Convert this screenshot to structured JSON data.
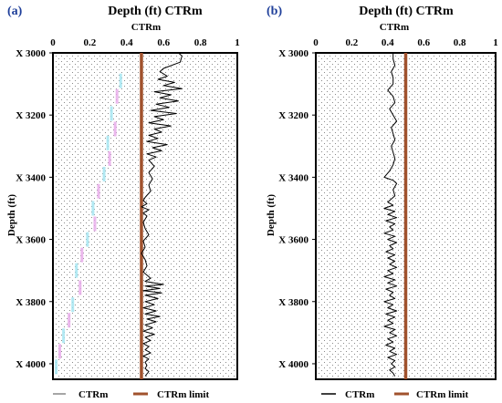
{
  "chart_data": [
    {
      "type": "line",
      "panel_label": "(a)",
      "title": "Depth (ft) CTRm",
      "xlabel": "CTRm",
      "ylabel": "Depth (ft)",
      "xlim": [
        0,
        1
      ],
      "ylim": [
        3000,
        4050
      ],
      "x_ticks": [
        "0",
        "0.2",
        "0.4",
        "0.6",
        "0.8",
        "1"
      ],
      "x_tick_values": [
        0,
        0.2,
        0.4,
        0.6,
        0.8,
        1
      ],
      "y_ticks": [
        "X 3000",
        "X 3200",
        "X 3400",
        "X 3600",
        "X 3800",
        "X 4000"
      ],
      "y_tick_values": [
        3000,
        3200,
        3400,
        3600,
        3800,
        4000
      ],
      "ctrm_limit": 0.48,
      "legend": [
        {
          "label": "CTRm",
          "color": "#888888"
        },
        {
          "label": "CTRm limit",
          "color": "#a0522d"
        }
      ],
      "series": [
        {
          "name": "CTRm",
          "color": "#000000",
          "points": [
            [
              0.68,
              3000
            ],
            [
              0.7,
              3010
            ],
            [
              0.69,
              3030
            ],
            [
              0.6,
              3050
            ],
            [
              0.58,
              3060
            ],
            [
              0.62,
              3075
            ],
            [
              0.57,
              3085
            ],
            [
              0.66,
              3095
            ],
            [
              0.6,
              3105
            ],
            [
              0.7,
              3115
            ],
            [
              0.55,
              3125
            ],
            [
              0.64,
              3135
            ],
            [
              0.58,
              3145
            ],
            [
              0.68,
              3155
            ],
            [
              0.56,
              3165
            ],
            [
              0.63,
              3175
            ],
            [
              0.53,
              3185
            ],
            [
              0.67,
              3195
            ],
            [
              0.55,
              3205
            ],
            [
              0.6,
              3215
            ],
            [
              0.52,
              3225
            ],
            [
              0.64,
              3235
            ],
            [
              0.55,
              3245
            ],
            [
              0.59,
              3255
            ],
            [
              0.52,
              3265
            ],
            [
              0.57,
              3275
            ],
            [
              0.51,
              3285
            ],
            [
              0.62,
              3295
            ],
            [
              0.54,
              3305
            ],
            [
              0.59,
              3315
            ],
            [
              0.51,
              3325
            ],
            [
              0.56,
              3335
            ],
            [
              0.52,
              3345
            ],
            [
              0.55,
              3365
            ],
            [
              0.52,
              3385
            ],
            [
              0.54,
              3405
            ],
            [
              0.52,
              3425
            ],
            [
              0.53,
              3445
            ],
            [
              0.5,
              3465
            ],
            [
              0.49,
              3475
            ],
            [
              0.51,
              3485
            ],
            [
              0.48,
              3495
            ],
            [
              0.52,
              3505
            ],
            [
              0.49,
              3515
            ],
            [
              0.51,
              3525
            ],
            [
              0.49,
              3545
            ],
            [
              0.5,
              3565
            ],
            [
              0.52,
              3585
            ],
            [
              0.49,
              3605
            ],
            [
              0.5,
              3625
            ],
            [
              0.48,
              3645
            ],
            [
              0.5,
              3665
            ],
            [
              0.51,
              3685
            ],
            [
              0.49,
              3705
            ],
            [
              0.53,
              3725
            ],
            [
              0.5,
              3735
            ],
            [
              0.6,
              3745
            ],
            [
              0.5,
              3750
            ],
            [
              0.58,
              3758
            ],
            [
              0.49,
              3765
            ],
            [
              0.59,
              3772
            ],
            [
              0.5,
              3780
            ],
            [
              0.57,
              3790
            ],
            [
              0.5,
              3800
            ],
            [
              0.55,
              3810
            ],
            [
              0.49,
              3820
            ],
            [
              0.56,
              3830
            ],
            [
              0.5,
              3840
            ],
            [
              0.58,
              3848
            ],
            [
              0.51,
              3856
            ],
            [
              0.56,
              3865
            ],
            [
              0.5,
              3875
            ],
            [
              0.54,
              3885
            ],
            [
              0.49,
              3895
            ],
            [
              0.55,
              3905
            ],
            [
              0.5,
              3915
            ],
            [
              0.53,
              3925
            ],
            [
              0.49,
              3935
            ],
            [
              0.52,
              3945
            ],
            [
              0.5,
              3955
            ],
            [
              0.53,
              3965
            ],
            [
              0.49,
              3975
            ],
            [
              0.52,
              3985
            ],
            [
              0.5,
              3995
            ],
            [
              0.51,
              4005
            ],
            [
              0.5,
              4015
            ],
            [
              0.52,
              4025
            ],
            [
              0.5,
              4040
            ]
          ]
        }
      ]
    },
    {
      "type": "line",
      "panel_label": "(b)",
      "title": "Depth (ft) CTRm",
      "xlabel": "CTRm",
      "ylabel": "Depth (ft)",
      "xlim": [
        0,
        1
      ],
      "ylim": [
        3000,
        4050
      ],
      "x_ticks": [
        "0",
        "0.2",
        "0.4",
        "0.6",
        "0.8",
        "1"
      ],
      "x_tick_values": [
        0,
        0.2,
        0.4,
        0.6,
        0.8,
        1
      ],
      "y_ticks": [
        "X 3000",
        "X 3200",
        "X 3400",
        "X 3600",
        "X 3800",
        "X 4000"
      ],
      "y_tick_values": [
        3000,
        3200,
        3400,
        3600,
        3800,
        4000
      ],
      "ctrm_limit": 0.5,
      "legend": [
        {
          "label": "CTRm",
          "color": "#000000"
        },
        {
          "label": "CTRm limit",
          "color": "#a0522d"
        }
      ],
      "series": [
        {
          "name": "CTRm",
          "color": "#000000",
          "points": [
            [
              0.43,
              3000
            ],
            [
              0.43,
              3020
            ],
            [
              0.44,
              3040
            ],
            [
              0.42,
              3060
            ],
            [
              0.43,
              3080
            ],
            [
              0.43,
              3100
            ],
            [
              0.4,
              3120
            ],
            [
              0.43,
              3140
            ],
            [
              0.44,
              3160
            ],
            [
              0.41,
              3180
            ],
            [
              0.43,
              3200
            ],
            [
              0.45,
              3220
            ],
            [
              0.42,
              3240
            ],
            [
              0.43,
              3260
            ],
            [
              0.44,
              3280
            ],
            [
              0.42,
              3300
            ],
            [
              0.43,
              3320
            ],
            [
              0.44,
              3340
            ],
            [
              0.43,
              3360
            ],
            [
              0.41,
              3380
            ],
            [
              0.38,
              3400
            ],
            [
              0.43,
              3410
            ],
            [
              0.45,
              3420
            ],
            [
              0.43,
              3440
            ],
            [
              0.44,
              3460
            ],
            [
              0.4,
              3480
            ],
            [
              0.43,
              3490
            ],
            [
              0.38,
              3500
            ],
            [
              0.44,
              3510
            ],
            [
              0.4,
              3520
            ],
            [
              0.45,
              3530
            ],
            [
              0.39,
              3540
            ],
            [
              0.44,
              3550
            ],
            [
              0.41,
              3560
            ],
            [
              0.43,
              3570
            ],
            [
              0.38,
              3580
            ],
            [
              0.44,
              3590
            ],
            [
              0.4,
              3600
            ],
            [
              0.45,
              3610
            ],
            [
              0.41,
              3620
            ],
            [
              0.43,
              3630
            ],
            [
              0.39,
              3640
            ],
            [
              0.44,
              3650
            ],
            [
              0.4,
              3660
            ],
            [
              0.44,
              3670
            ],
            [
              0.41,
              3680
            ],
            [
              0.45,
              3690
            ],
            [
              0.4,
              3700
            ],
            [
              0.43,
              3710
            ],
            [
              0.38,
              3720
            ],
            [
              0.44,
              3730
            ],
            [
              0.4,
              3740
            ],
            [
              0.45,
              3750
            ],
            [
              0.39,
              3760
            ],
            [
              0.43,
              3770
            ],
            [
              0.41,
              3780
            ],
            [
              0.44,
              3790
            ],
            [
              0.38,
              3800
            ],
            [
              0.43,
              3810
            ],
            [
              0.4,
              3820
            ],
            [
              0.45,
              3830
            ],
            [
              0.39,
              3840
            ],
            [
              0.44,
              3850
            ],
            [
              0.4,
              3860
            ],
            [
              0.43,
              3870
            ],
            [
              0.38,
              3880
            ],
            [
              0.44,
              3890
            ],
            [
              0.41,
              3900
            ],
            [
              0.45,
              3910
            ],
            [
              0.4,
              3920
            ],
            [
              0.43,
              3930
            ],
            [
              0.39,
              3940
            ],
            [
              0.44,
              3950
            ],
            [
              0.41,
              3960
            ],
            [
              0.45,
              3970
            ],
            [
              0.4,
              3980
            ],
            [
              0.44,
              3990
            ],
            [
              0.42,
              4000
            ],
            [
              0.44,
              4010
            ],
            [
              0.41,
              4020
            ],
            [
              0.43,
              4030
            ],
            [
              0.44,
              4040
            ]
          ]
        }
      ]
    }
  ]
}
